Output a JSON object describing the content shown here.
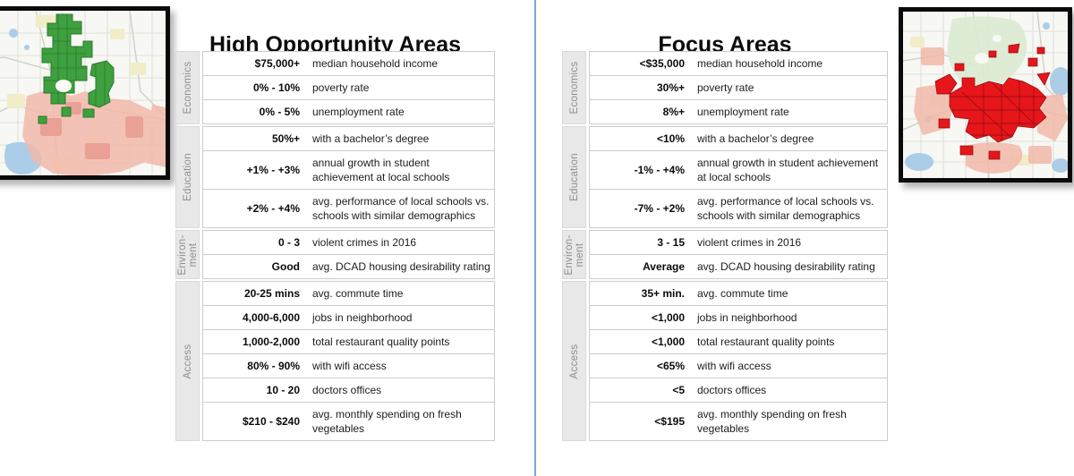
{
  "colors": {
    "divider": "#7da7d9",
    "map-bg": "#f7f7f4",
    "map-road": "#e1e1da",
    "map-road-dark": "#d2d2ca",
    "map-water": "#abcde8",
    "map-yellow": "#f0edc8",
    "map-salmon": "#f2b9aa",
    "map-salmon-deep": "#ea9d92",
    "map-green": "#3fa03f",
    "map-green-dark": "#2a7a2a",
    "map-pale-green": "#dcead2",
    "map-red": "#e6161b",
    "map-red-dark": "#8c0b0e",
    "cat-bg": "#e8e8e8",
    "cat-text": "#8e8e8e",
    "row-border": "#cccccc"
  },
  "left_panel": {
    "title": "High Opportunity Areas",
    "map_alt": "map of Dallas with high opportunity areas highlighted in green",
    "groups": [
      {
        "label": "Economics",
        "rows": [
          {
            "value": "$75,000+",
            "desc": "median household income"
          },
          {
            "value": "0% - 10%",
            "desc": "poverty rate"
          },
          {
            "value": "0% - 5%",
            "desc": "unemployment rate"
          }
        ]
      },
      {
        "label": "Education",
        "rows": [
          {
            "value": "50%+",
            "desc": "with a bachelor’s degree"
          },
          {
            "value": "+1% - +3%",
            "desc": "annual growth in student achievement at local schools"
          },
          {
            "value": "+2% - +4%",
            "desc": "avg. performance of local schools vs. schools with similar demographics"
          }
        ]
      },
      {
        "label": "Environ-\nment",
        "rows": [
          {
            "value": "0 - 3",
            "desc": "violent crimes in 2016"
          },
          {
            "value": "Good",
            "desc": "avg. DCAD housing desirability rating"
          }
        ]
      },
      {
        "label": "Access",
        "rows": [
          {
            "value": "20-25 mins",
            "desc": "avg. commute time"
          },
          {
            "value": "4,000-6,000",
            "desc": "jobs in neighborhood"
          },
          {
            "value": "1,000-2,000",
            "desc": "total restaurant quality points"
          },
          {
            "value": "80% - 90%",
            "desc": "with wifi access"
          },
          {
            "value": "10 - 20",
            "desc": "doctors offices"
          },
          {
            "value": "$210 - $240",
            "desc": "avg. monthly spending on fresh vegetables"
          }
        ]
      }
    ]
  },
  "right_panel": {
    "title": "Focus Areas",
    "map_alt": "map of Dallas with focus areas highlighted in red",
    "groups": [
      {
        "label": "Economics",
        "rows": [
          {
            "value": "<$35,000",
            "desc": "median household income"
          },
          {
            "value": "30%+",
            "desc": "poverty rate"
          },
          {
            "value": "8%+",
            "desc": "unemployment rate"
          }
        ]
      },
      {
        "label": "Education",
        "rows": [
          {
            "value": "<10%",
            "desc": "with a bachelor’s degree"
          },
          {
            "value": "-1% - +4%",
            "desc": "annual growth in student achievement at local schools"
          },
          {
            "value": "-7% - +2%",
            "desc": "avg. performance of local schools vs. schools with similar demographics"
          }
        ]
      },
      {
        "label": "Environ-\nment",
        "rows": [
          {
            "value": "3 - 15",
            "desc": "violent crimes in 2016"
          },
          {
            "value": "Average",
            "desc": "avg. DCAD housing desirability rating"
          }
        ]
      },
      {
        "label": "Access",
        "rows": [
          {
            "value": "35+ min.",
            "desc": "avg. commute time"
          },
          {
            "value": "<1,000",
            "desc": "jobs in neighborhood"
          },
          {
            "value": "<1,000",
            "desc": "total restaurant quality points"
          },
          {
            "value": "<65%",
            "desc": "with wifi access"
          },
          {
            "value": "<5",
            "desc": "doctors offices"
          },
          {
            "value": "<$195",
            "desc": "avg. monthly spending on fresh vegetables"
          }
        ]
      }
    ]
  }
}
